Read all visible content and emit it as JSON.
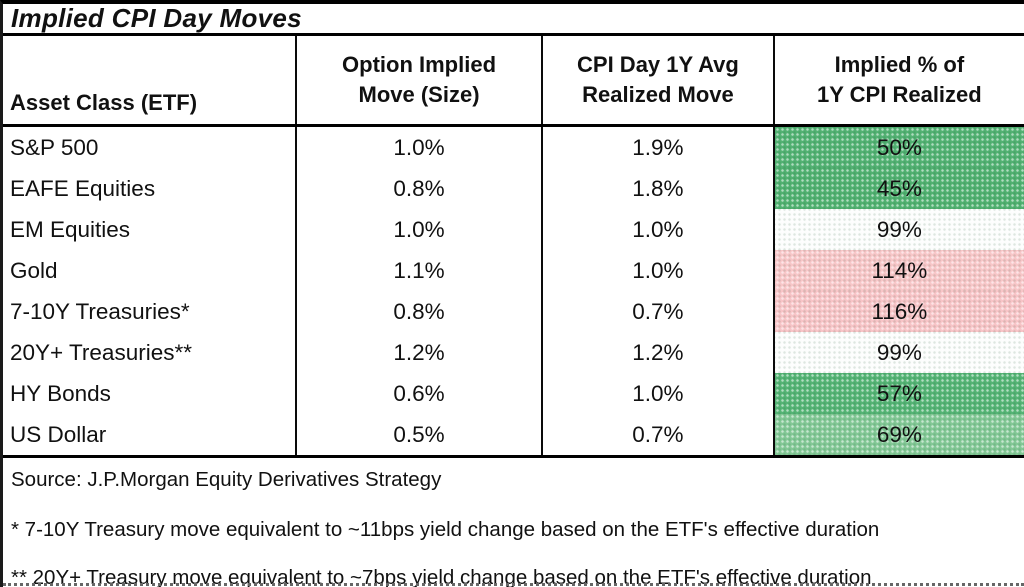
{
  "title": "Implied CPI Day Moves",
  "table": {
    "headers": [
      [
        "Asset Class (ETF)"
      ],
      [
        "Option Implied",
        "Move (Size)"
      ],
      [
        "CPI Day 1Y Avg",
        "Realized Move"
      ],
      [
        "Implied % of",
        "1Y CPI Realized"
      ]
    ],
    "rows": [
      {
        "asset": "S&P 500",
        "implied_move": "1.0%",
        "realized_move": "1.9%",
        "implied_pct": "50%",
        "pct_bg": "#53b273"
      },
      {
        "asset": "EAFE Equities",
        "implied_move": "0.8%",
        "realized_move": "1.8%",
        "implied_pct": "45%",
        "pct_bg": "#51b171"
      },
      {
        "asset": "EM Equities",
        "implied_move": "1.0%",
        "realized_move": "1.0%",
        "implied_pct": "99%",
        "pct_bg": "#fcfdfc"
      },
      {
        "asset": "Gold",
        "implied_move": "1.1%",
        "realized_move": "1.0%",
        "implied_pct": "114%",
        "pct_bg": "#f8c6c8"
      },
      {
        "asset": "7-10Y Treasuries*",
        "implied_move": "0.8%",
        "realized_move": "0.7%",
        "implied_pct": "116%",
        "pct_bg": "#f8c4c7"
      },
      {
        "asset": "20Y+ Treasuries**",
        "implied_move": "1.2%",
        "realized_move": "1.2%",
        "implied_pct": "99%",
        "pct_bg": "#fcfdfc"
      },
      {
        "asset": "HY Bonds",
        "implied_move": "0.6%",
        "realized_move": "1.0%",
        "implied_pct": "57%",
        "pct_bg": "#55b475"
      },
      {
        "asset": "US Dollar",
        "implied_move": "0.5%",
        "realized_move": "0.7%",
        "implied_pct": "69%",
        "pct_bg": "#83c896"
      }
    ]
  },
  "footnotes": {
    "source": "Source: J.P.Morgan Equity Derivatives Strategy",
    "note1": "* 7-10Y Treasury move equivalent to ~11bps yield change based on the ETF's effective duration",
    "note2": "** 20Y+ Treasury move equivalent to ~7bps yield change based on the ETF's effective duration"
  },
  "colors": {
    "green_strong": "#53b273",
    "green_light": "#83c896",
    "neutral_white": "#fcfdfc",
    "pink": "#f8c6c8",
    "border": "#000000",
    "text": "#111111"
  }
}
